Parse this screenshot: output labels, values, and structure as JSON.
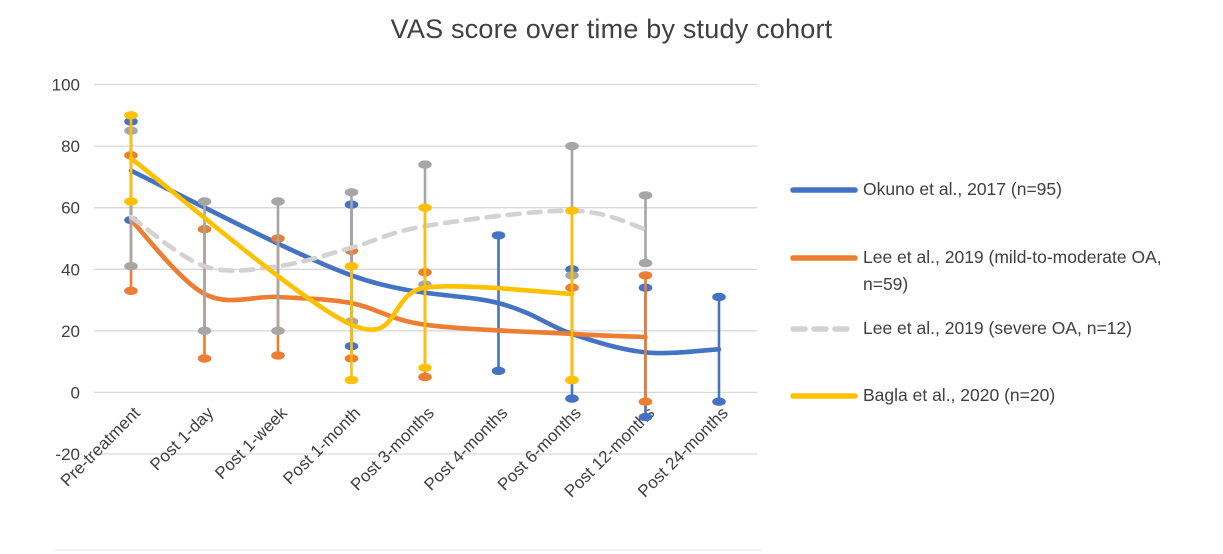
{
  "chart_data": {
    "type": "line",
    "title": "VAS score over time by study cohort",
    "xlabel": "",
    "ylabel": "",
    "grid": true,
    "legend_position": "right",
    "y_axis": {
      "min": -20,
      "max": 100,
      "tick_step": 20,
      "ticks": [
        100,
        80,
        60,
        40,
        20,
        0,
        -20
      ]
    },
    "categories": [
      "Pre-treatment",
      "Post 1-day",
      "Post 1-week",
      "Post 1-month",
      "Post 3-months",
      "Post 4-months",
      "Post 6-months",
      "Post 12-months",
      "Post 24-months"
    ],
    "series": [
      {
        "name": "Okuno et al., 2017 (n=95)",
        "color": "#4472C4",
        "style": "solid",
        "values": [
          72,
          null,
          null,
          38,
          null,
          29,
          19,
          13,
          14
        ],
        "error_low": [
          56,
          null,
          null,
          15,
          null,
          7,
          -2,
          -8,
          -3
        ],
        "error_high": [
          88,
          null,
          null,
          61,
          null,
          51,
          40,
          34,
          31
        ]
      },
      {
        "name": "Lee et al., 2019 (mild-to-moderate OA, n=59)",
        "color": "#ED7D31",
        "style": "solid",
        "values": [
          56,
          32,
          31,
          29,
          22,
          null,
          19,
          18,
          null
        ],
        "error_low": [
          33,
          11,
          12,
          11,
          5,
          null,
          4,
          -3,
          null
        ],
        "error_high": [
          77,
          53,
          50,
          46,
          39,
          null,
          34,
          38,
          null
        ]
      },
      {
        "name": "Lee et al., 2019 (severe OA, n=12)",
        "color": "#D2D2D2",
        "error_color": "#A6A6A6",
        "style": "dashed",
        "values": [
          57,
          41,
          41,
          47,
          54,
          null,
          59,
          53,
          null
        ],
        "error_low": [
          41,
          20,
          20,
          23,
          35,
          null,
          38,
          42,
          null
        ],
        "error_high": [
          85,
          62,
          62,
          65,
          74,
          null,
          80,
          64,
          null
        ]
      },
      {
        "name": "Bagla et al., 2020 (n=20)",
        "color": "#FFC000",
        "style": "solid",
        "values": [
          76,
          null,
          null,
          22,
          34,
          null,
          32,
          null,
          null
        ],
        "error_low": [
          62,
          null,
          null,
          4,
          8,
          null,
          4,
          null,
          null
        ],
        "error_high": [
          90,
          null,
          null,
          41,
          60,
          null,
          59,
          null,
          null
        ]
      }
    ],
    "colors": {
      "grid": "#D9D9D9",
      "label": "#404040"
    }
  }
}
